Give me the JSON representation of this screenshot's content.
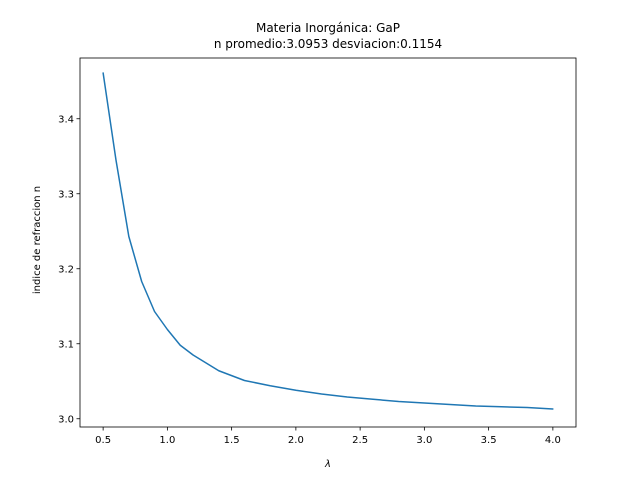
{
  "chart_data": {
    "type": "line",
    "title": "Materia Inorgánica: GaP",
    "subtitle": "n promedio:3.0953 desviacion:0.1154",
    "xlabel": "λ",
    "ylabel": "indice de refraccion n",
    "xlim": [
      0.32,
      4.18
    ],
    "ylim": [
      2.989,
      3.481
    ],
    "xticks": [
      0.5,
      1.0,
      1.5,
      2.0,
      2.5,
      3.0,
      3.5,
      4.0
    ],
    "xtick_labels": [
      "0.5",
      "1.0",
      "1.5",
      "2.0",
      "2.5",
      "3.0",
      "3.5",
      "4.0"
    ],
    "yticks": [
      3.0,
      3.1,
      3.2,
      3.3,
      3.4
    ],
    "ytick_labels": [
      "3.0",
      "3.1",
      "3.2",
      "3.3",
      "3.4"
    ],
    "grid": false,
    "color": "#1f77b4",
    "series": [
      {
        "x": [
          0.5,
          0.6,
          0.7,
          0.8,
          0.9,
          1.0,
          1.1,
          1.2,
          1.4,
          1.6,
          1.8,
          2.0,
          2.2,
          2.4,
          2.6,
          2.8,
          3.0,
          3.2,
          3.4,
          3.6,
          3.8,
          4.0
        ],
        "values": [
          3.461,
          3.345,
          3.243,
          3.183,
          3.143,
          3.119,
          3.098,
          3.085,
          3.064,
          3.051,
          3.044,
          3.038,
          3.033,
          3.029,
          3.026,
          3.023,
          3.021,
          3.019,
          3.017,
          3.016,
          3.015,
          3.013
        ]
      }
    ]
  }
}
